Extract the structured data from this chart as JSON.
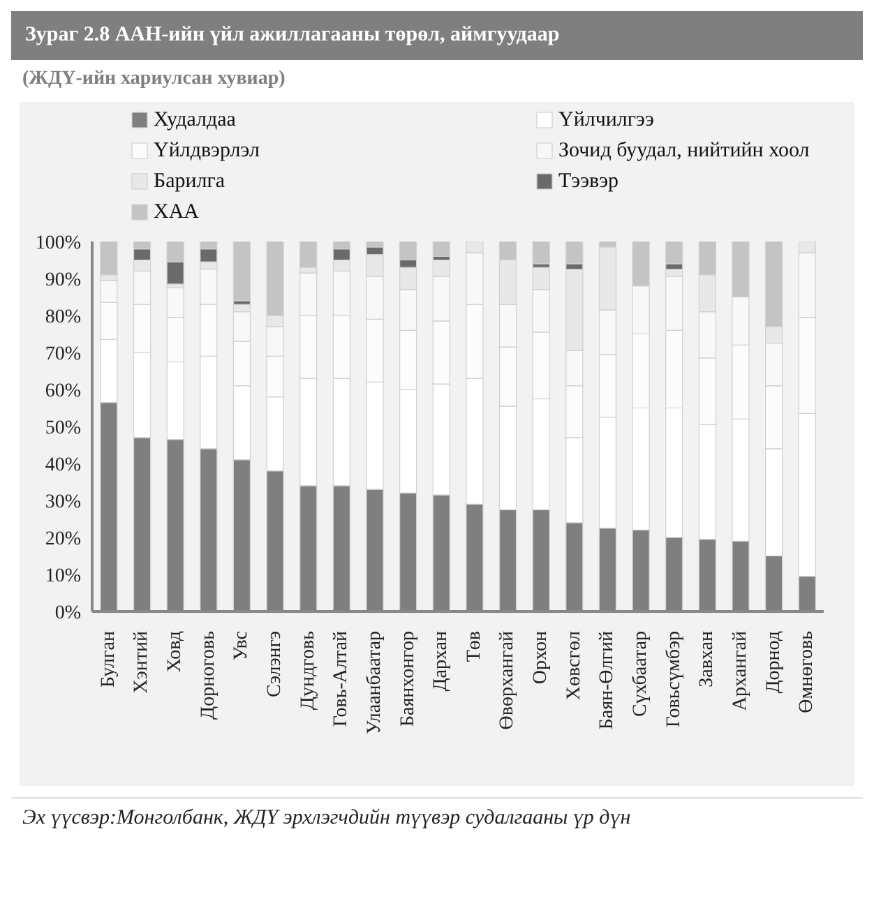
{
  "chart_data": {
    "type": "bar",
    "title": "Зураг 2.8 ААН-ийн үйл ажиллагааны төрөл, аймгуудаар",
    "subtitle": "(ЖДҮ-ийн хариулсан хувиар)",
    "categories": [
      "Булган",
      "Хэнтий",
      "Ховд",
      "Дорноговь",
      "Увс",
      "Сэлэнгэ",
      "Дундговь",
      "Говь-Алтай",
      "Улаанбаатар",
      "Баянхонгор",
      "Дархан",
      "Төв",
      "Өвөрхангай",
      "Орхон",
      "Хөвсгөл",
      "Баян-Өлгий",
      "Сүхбаатар",
      "Говьсүмбэр",
      "Завхан",
      "Архангай",
      "Дорнод",
      "Өмнөговь"
    ],
    "stacked": true,
    "series": [
      {
        "name": "Худалдаа",
        "color": "#7f7f7f",
        "values": [
          56.5,
          47,
          46.5,
          44,
          41,
          38,
          34,
          34,
          33,
          32,
          31.5,
          29,
          27.5,
          27.5,
          24,
          22.5,
          22,
          20,
          19.5,
          19,
          15,
          9.5
        ]
      },
      {
        "name": "Үйлчилгээ",
        "color": "#ffffff",
        "values": [
          17,
          23,
          21,
          25,
          20,
          20,
          29,
          29,
          29,
          28,
          30,
          34,
          28,
          30,
          23,
          30,
          33,
          35,
          31,
          33,
          29,
          44
        ]
      },
      {
        "name": "Үйлдвэрлэл",
        "color": "#fcfcfc",
        "values": [
          10,
          13,
          12,
          14,
          12,
          11,
          17,
          17,
          17,
          16,
          17,
          20,
          16,
          18,
          14,
          17,
          20,
          21,
          18,
          20,
          17,
          26
        ]
      },
      {
        "name": "Зочид буудал, нийтийн хоол",
        "color": "#f8f8f8",
        "values": [
          6,
          9,
          8,
          9.5,
          8,
          8,
          11.5,
          12,
          11.5,
          11,
          12,
          14,
          11.5,
          11.5,
          9.5,
          12,
          13,
          14.5,
          12.5,
          13,
          11.5,
          17.5
        ]
      },
      {
        "name": "Барилга",
        "color": "#e8e8e8",
        "values": [
          1.5,
          3,
          1,
          2,
          2,
          3,
          1.5,
          3,
          6,
          6,
          4.5,
          3,
          12,
          6,
          22,
          17,
          0,
          2,
          10,
          0,
          4.5,
          3
        ]
      },
      {
        "name": "Тээвэр",
        "color": "#6a6a6a",
        "values": [
          0,
          3,
          6,
          3.5,
          1,
          0,
          0,
          3,
          2,
          2,
          1,
          0,
          0,
          1,
          1.5,
          0,
          0,
          1.5,
          0,
          0,
          0,
          0
        ]
      },
      {
        "name": "ХАА",
        "color": "#c4c4c4",
        "values": [
          9,
          2,
          5.5,
          2,
          16,
          20,
          7,
          2,
          1.5,
          5,
          4,
          0,
          5,
          6,
          6,
          1.5,
          12,
          6,
          9,
          15,
          23,
          0
        ]
      }
    ],
    "ylim": [
      0,
      100
    ],
    "yticks": [
      {
        "value": 0,
        "label": "0%"
      },
      {
        "value": 10,
        "label": "10%"
      },
      {
        "value": 20,
        "label": "20%"
      },
      {
        "value": 30,
        "label": "30%"
      },
      {
        "value": 40,
        "label": "40%"
      },
      {
        "value": 50,
        "label": "50%"
      },
      {
        "value": 60,
        "label": "60%"
      },
      {
        "value": 70,
        "label": "70%"
      },
      {
        "value": 80,
        "label": "80%"
      },
      {
        "value": 90,
        "label": "90%"
      },
      {
        "value": 100,
        "label": "100%"
      }
    ],
    "grid": false,
    "legend": "top",
    "annotations": [
      "Эх үүсвэр:Монголбанк, ЖДҮ эрхлэгчдийн түүвэр судалгааны үр дүн"
    ]
  }
}
